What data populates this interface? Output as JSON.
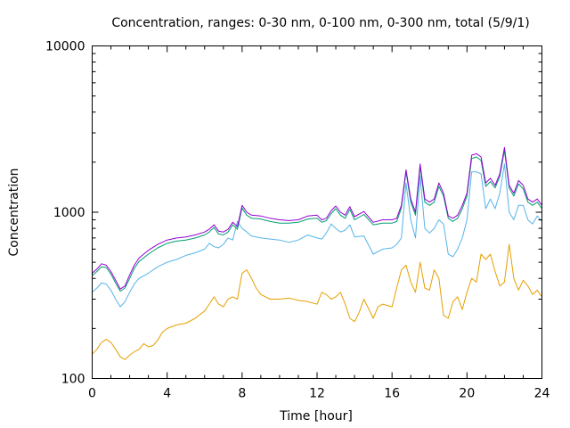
{
  "chart_data": {
    "type": "line",
    "title": "Concentration, ranges: 0-30 nm, 0-100 nm, 0-300 nm, total (5/9/1)",
    "xlabel": "Time [hour]",
    "ylabel": "Concentration",
    "xlim": [
      0,
      24
    ],
    "ylim": [
      100,
      10000
    ],
    "yscale": "log",
    "grid": false,
    "legend": "none",
    "xticks": [
      0,
      4,
      8,
      12,
      16,
      20,
      24
    ],
    "xtick_labels": [
      "0",
      "4",
      "8",
      "12",
      "16",
      "20",
      "24"
    ],
    "xminor_step": 1,
    "yticks": [
      100,
      1000,
      10000
    ],
    "ytick_labels": [
      "100",
      "1000",
      "10000"
    ],
    "series": [
      {
        "name": "total",
        "color": "#9400d3",
        "x": [
          0,
          0.25,
          0.5,
          0.75,
          1,
          1.25,
          1.5,
          1.75,
          2,
          2.25,
          2.5,
          3,
          3.5,
          4,
          4.5,
          5,
          5.5,
          6,
          6.25,
          6.5,
          6.75,
          7,
          7.25,
          7.5,
          7.75,
          8,
          8.25,
          8.5,
          9,
          9.5,
          10,
          10.5,
          11,
          11.5,
          12,
          12.25,
          12.5,
          12.75,
          13,
          13.25,
          13.5,
          13.75,
          14,
          14.5,
          15,
          15.5,
          16,
          16.25,
          16.5,
          16.75,
          17,
          17.25,
          17.5,
          17.75,
          18,
          18.25,
          18.5,
          18.75,
          19,
          19.25,
          19.5,
          19.75,
          20,
          20.25,
          20.5,
          20.75,
          21,
          21.25,
          21.5,
          21.75,
          22,
          22.25,
          22.5,
          22.75,
          23,
          23.25,
          23.5,
          23.75,
          24
        ],
        "values": [
          430,
          455,
          490,
          480,
          440,
          390,
          345,
          360,
          420,
          480,
          530,
          590,
          640,
          680,
          700,
          710,
          730,
          760,
          790,
          840,
          770,
          760,
          790,
          870,
          820,
          1100,
          1000,
          960,
          950,
          920,
          900,
          890,
          900,
          950,
          960,
          900,
          920,
          1020,
          1090,
          1000,
          960,
          1080,
          940,
          1010,
          870,
          900,
          900,
          920,
          1100,
          1800,
          1200,
          1000,
          1950,
          1200,
          1150,
          1200,
          1500,
          1300,
          950,
          920,
          960,
          1100,
          1300,
          2200,
          2250,
          2150,
          1500,
          1600,
          1450,
          1700,
          2450,
          1450,
          1300,
          1550,
          1450,
          1200,
          1150,
          1200,
          1100
        ]
      },
      {
        "name": "0-300 nm",
        "color": "#009e73",
        "x": [
          0,
          0.25,
          0.5,
          0.75,
          1,
          1.25,
          1.5,
          1.75,
          2,
          2.25,
          2.5,
          3,
          3.5,
          4,
          4.5,
          5,
          5.5,
          6,
          6.25,
          6.5,
          6.75,
          7,
          7.25,
          7.5,
          7.75,
          8,
          8.25,
          8.5,
          9,
          9.5,
          10,
          10.5,
          11,
          11.5,
          12,
          12.25,
          12.5,
          12.75,
          13,
          13.25,
          13.5,
          13.75,
          14,
          14.5,
          15,
          15.5,
          16,
          16.25,
          16.5,
          16.75,
          17,
          17.25,
          17.5,
          17.75,
          18,
          18.25,
          18.5,
          18.75,
          19,
          19.25,
          19.5,
          19.75,
          20,
          20.25,
          20.5,
          20.75,
          21,
          21.25,
          21.5,
          21.75,
          22,
          22.25,
          22.5,
          22.75,
          23,
          23.25,
          23.5,
          23.75,
          24
        ],
        "values": [
          415,
          440,
          470,
          465,
          425,
          375,
          335,
          350,
          400,
          460,
          505,
          560,
          610,
          650,
          670,
          680,
          700,
          730,
          760,
          810,
          740,
          730,
          760,
          840,
          790,
          1060,
          960,
          920,
          910,
          880,
          860,
          860,
          870,
          910,
          920,
          870,
          890,
          980,
          1050,
          960,
          920,
          1040,
          900,
          970,
          840,
          860,
          860,
          880,
          1060,
          1750,
          1150,
          960,
          1880,
          1150,
          1100,
          1150,
          1430,
          1250,
          920,
          880,
          920,
          1050,
          1250,
          2100,
          2150,
          2050,
          1430,
          1530,
          1400,
          1640,
          2350,
          1400,
          1250,
          1480,
          1380,
          1150,
          1100,
          1150,
          1050
        ]
      },
      {
        "name": "0-100 nm",
        "color": "#56b4e9",
        "x": [
          0,
          0.25,
          0.5,
          0.75,
          1,
          1.25,
          1.5,
          1.75,
          2,
          2.25,
          2.5,
          3,
          3.5,
          4,
          4.5,
          5,
          5.5,
          6,
          6.25,
          6.5,
          6.75,
          7,
          7.25,
          7.5,
          7.75,
          8,
          8.25,
          8.5,
          9,
          9.5,
          10,
          10.5,
          11,
          11.5,
          12,
          12.25,
          12.5,
          12.75,
          13,
          13.25,
          13.5,
          13.75,
          14,
          14.5,
          15,
          15.5,
          16,
          16.25,
          16.5,
          16.75,
          17,
          17.25,
          17.5,
          17.75,
          18,
          18.25,
          18.5,
          18.75,
          19,
          19.25,
          19.5,
          19.75,
          20,
          20.25,
          20.5,
          20.75,
          21,
          21.25,
          21.5,
          21.75,
          22,
          22.25,
          22.5,
          22.75,
          23,
          23.25,
          23.5,
          23.75,
          24
        ],
        "values": [
          330,
          350,
          375,
          370,
          340,
          300,
          270,
          290,
          330,
          370,
          400,
          430,
          470,
          500,
          520,
          550,
          570,
          600,
          650,
          620,
          610,
          640,
          700,
          680,
          880,
          800,
          760,
          720,
          700,
          690,
          680,
          660,
          680,
          730,
          700,
          690,
          750,
          850,
          800,
          760,
          780,
          840,
          710,
          720,
          560,
          600,
          610,
          640,
          700,
          1500,
          900,
          700,
          1650,
          800,
          750,
          800,
          900,
          850,
          560,
          540,
          600,
          700,
          900,
          1750,
          1750,
          1700,
          1050,
          1200,
          1050,
          1300,
          1950,
          1000,
          900,
          1100,
          1100,
          900,
          850,
          950,
          880
        ]
      },
      {
        "name": "0-30 nm",
        "color": "#e69f00",
        "x": [
          0,
          0.25,
          0.5,
          0.75,
          1,
          1.25,
          1.5,
          1.75,
          2,
          2.25,
          2.5,
          2.75,
          3,
          3.25,
          3.5,
          3.75,
          4,
          4.5,
          5,
          5.5,
          6,
          6.25,
          6.5,
          6.75,
          7,
          7.25,
          7.5,
          7.75,
          8,
          8.25,
          8.5,
          8.75,
          9,
          9.5,
          10,
          10.5,
          11,
          11.5,
          12,
          12.25,
          12.5,
          12.75,
          13,
          13.25,
          13.5,
          13.75,
          14,
          14.25,
          14.5,
          15,
          15.25,
          15.5,
          16,
          16.25,
          16.5,
          16.75,
          17,
          17.25,
          17.5,
          17.75,
          18,
          18.25,
          18.5,
          18.75,
          19,
          19.25,
          19.5,
          19.75,
          20,
          20.25,
          20.5,
          20.75,
          21,
          21.25,
          21.5,
          21.75,
          22,
          22.25,
          22.5,
          22.75,
          23,
          23.25,
          23.5,
          23.75,
          24
        ],
        "values": [
          140,
          150,
          165,
          172,
          165,
          150,
          135,
          130,
          138,
          145,
          150,
          162,
          155,
          158,
          170,
          190,
          200,
          210,
          215,
          230,
          255,
          280,
          310,
          280,
          270,
          300,
          310,
          300,
          430,
          450,
          400,
          350,
          320,
          300,
          300,
          305,
          295,
          290,
          280,
          330,
          320,
          300,
          310,
          330,
          280,
          230,
          220,
          250,
          300,
          230,
          270,
          280,
          270,
          350,
          450,
          480,
          380,
          330,
          500,
          350,
          340,
          450,
          400,
          240,
          230,
          290,
          310,
          260,
          330,
          400,
          380,
          560,
          520,
          560,
          440,
          360,
          380,
          640,
          400,
          340,
          390,
          360,
          320,
          340,
          310
        ]
      }
    ]
  }
}
